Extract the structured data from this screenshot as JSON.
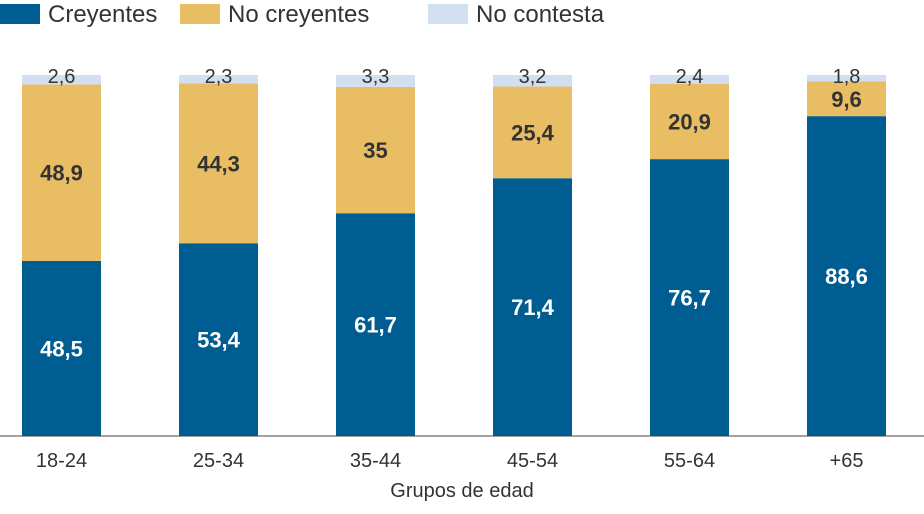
{
  "chart_data": {
    "type": "bar",
    "stacked": true,
    "xlabel": "Grupos de edad",
    "categories": [
      "18-24",
      "25-34",
      "35-44",
      "45-54",
      "55-64",
      "+65"
    ],
    "series": [
      {
        "name": "Creyentes",
        "color": "#005d92",
        "values": [
          48.5,
          53.4,
          61.7,
          71.4,
          76.7,
          88.6
        ],
        "labels": [
          "48,5",
          "53,4",
          "61,7",
          "71,4",
          "76,7",
          "88,6"
        ]
      },
      {
        "name": "No creyentes",
        "color": "#e8bd63",
        "values": [
          48.9,
          44.3,
          35,
          25.4,
          20.9,
          9.6
        ],
        "labels": [
          "48,9",
          "44,3",
          "35",
          "25,4",
          "20,9",
          "9,6"
        ]
      },
      {
        "name": "No contesta",
        "color": "#d2dff0",
        "values": [
          2.6,
          2.3,
          3.3,
          3.2,
          2.4,
          1.8
        ],
        "labels": [
          "2,6",
          "2,3",
          "3,3",
          "3,2",
          "2,4",
          "1,8"
        ]
      }
    ],
    "ylim": [
      0,
      100
    ],
    "legend": "top-left",
    "grid": false
  }
}
